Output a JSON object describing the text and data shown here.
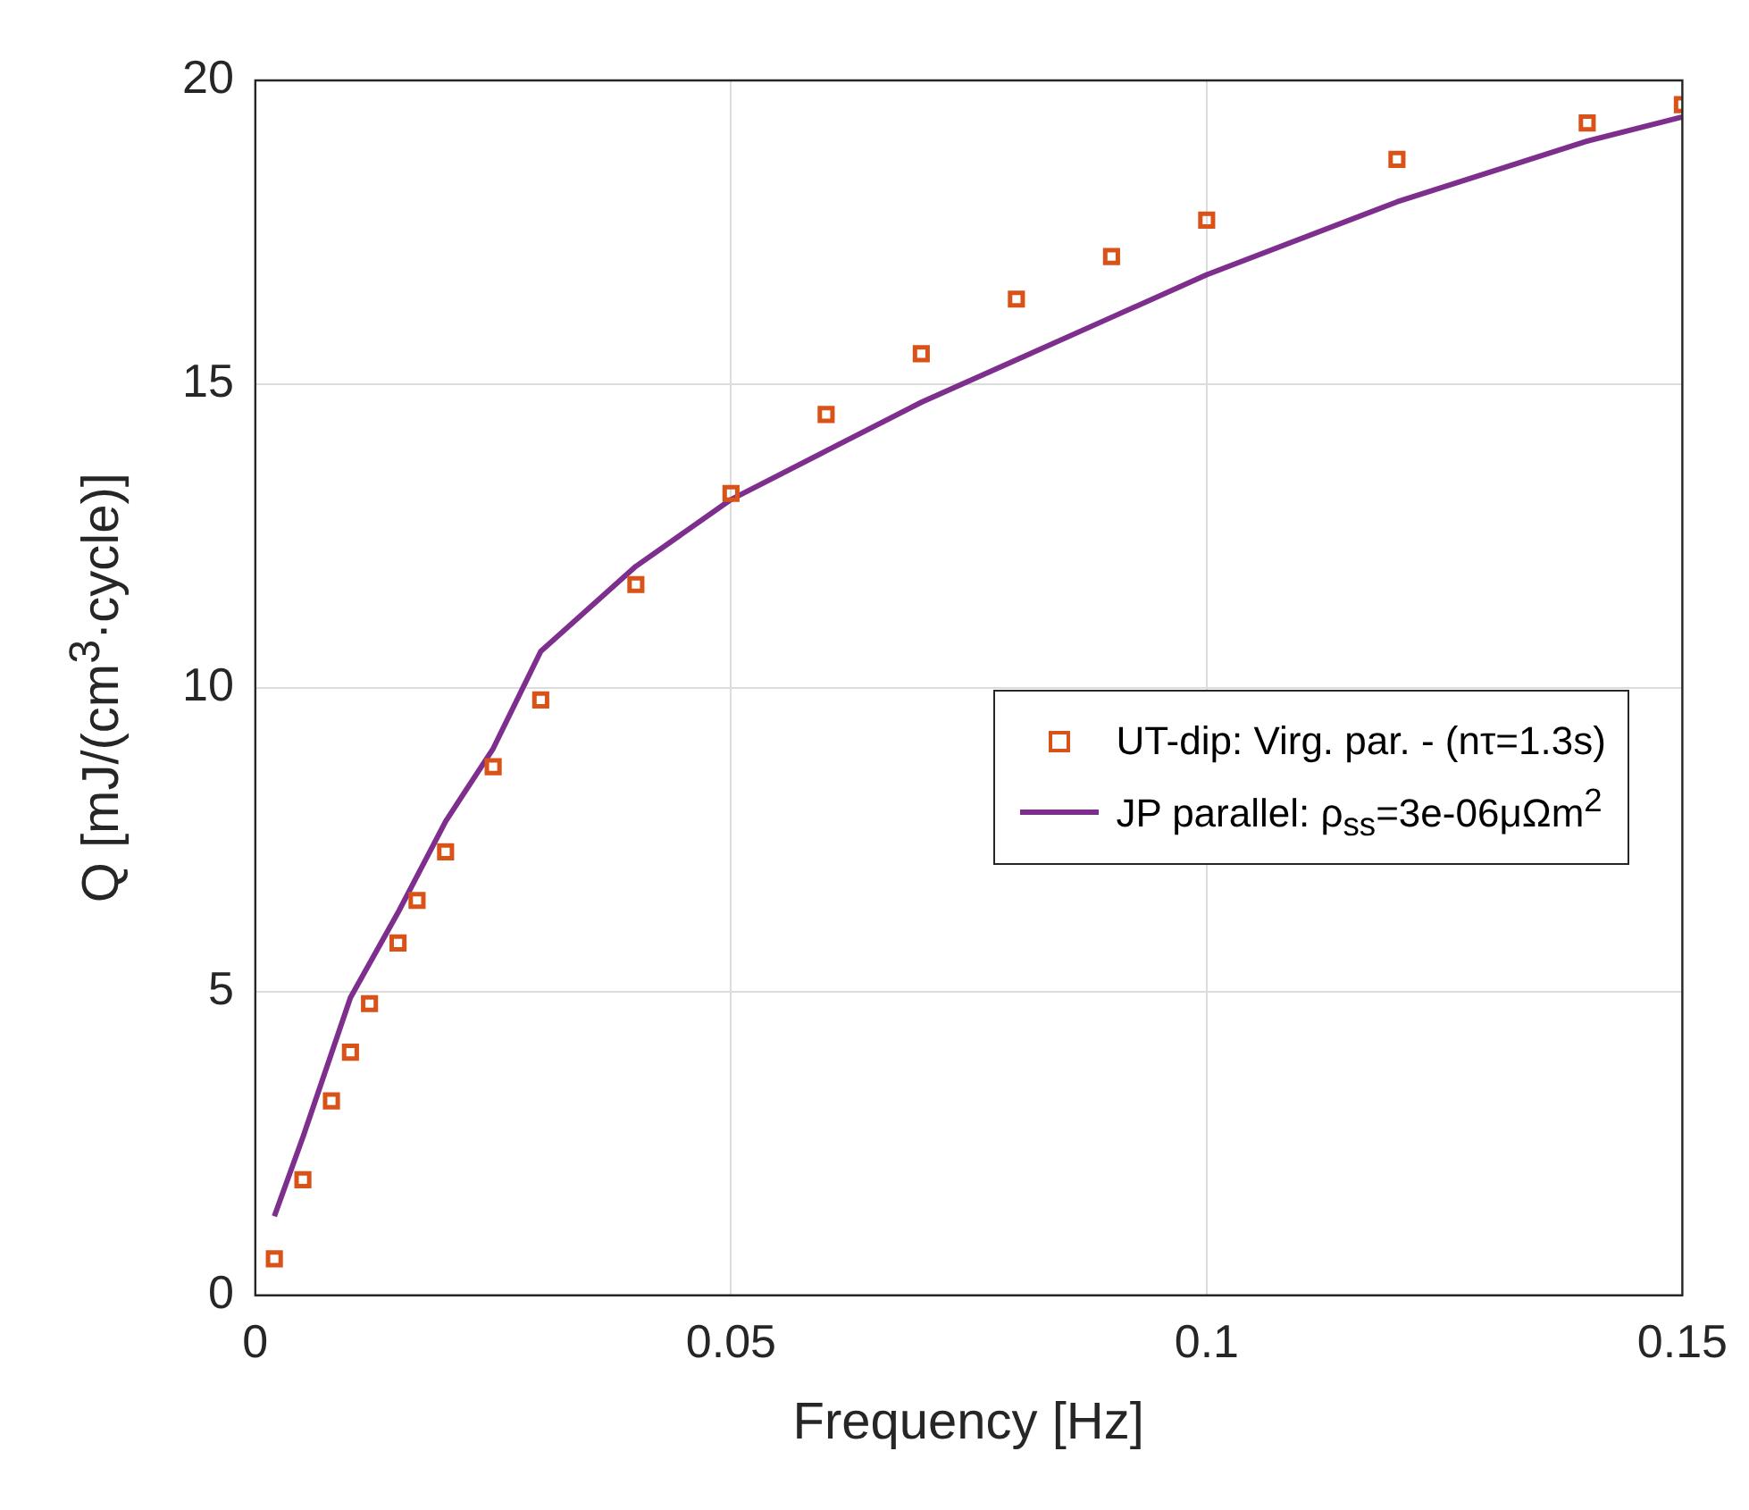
{
  "chart_data": {
    "type": "scatter",
    "xlabel": "Frequency [Hz]",
    "ylabel": "Q [mJ/(cm$^{3}$·cycle)]",
    "xlim": [
      0,
      0.15
    ],
    "xticks": [
      0,
      0.05,
      0.1,
      0.15
    ],
    "ylim": [
      0,
      20
    ],
    "yticks": [
      0,
      5,
      10,
      15,
      20
    ],
    "grid": true,
    "legend": "right",
    "series": [
      {
        "name": "UT-dip: Virg. par. - (nτ=1.3s)",
        "marker": "square",
        "color": "#d95319",
        "x": [
          0.002,
          0.005,
          0.008,
          0.01,
          0.012,
          0.015,
          0.017,
          0.02,
          0.025,
          0.03,
          0.04,
          0.05,
          0.06,
          0.07,
          0.08,
          0.09,
          0.1,
          0.12,
          0.14,
          0.15
        ],
        "values": [
          0.6,
          1.9,
          3.2,
          4.0,
          4.8,
          5.8,
          6.5,
          7.3,
          8.7,
          9.8,
          11.7,
          13.2,
          14.5,
          15.5,
          16.4,
          17.1,
          17.7,
          18.7,
          19.3,
          19.6
        ]
      },
      {
        "name": "JP parallel: ρ$_{ss}$=3e-06μΩm$^{2}$",
        "type": "line",
        "marker": "none",
        "line_style": "solid",
        "color": "#7e2f8e",
        "x": [
          0.002,
          0.005,
          0.01,
          0.015,
          0.02,
          0.025,
          0.03,
          0.04,
          0.05,
          0.06,
          0.07,
          0.08,
          0.09,
          0.1,
          0.12,
          0.14,
          0.15
        ],
        "values": [
          1.3,
          2.6,
          4.9,
          6.3,
          7.8,
          9.0,
          10.6,
          12.0,
          13.1,
          13.9,
          14.7,
          15.4,
          16.1,
          16.8,
          18.0,
          19.0,
          19.4
        ]
      }
    ]
  }
}
